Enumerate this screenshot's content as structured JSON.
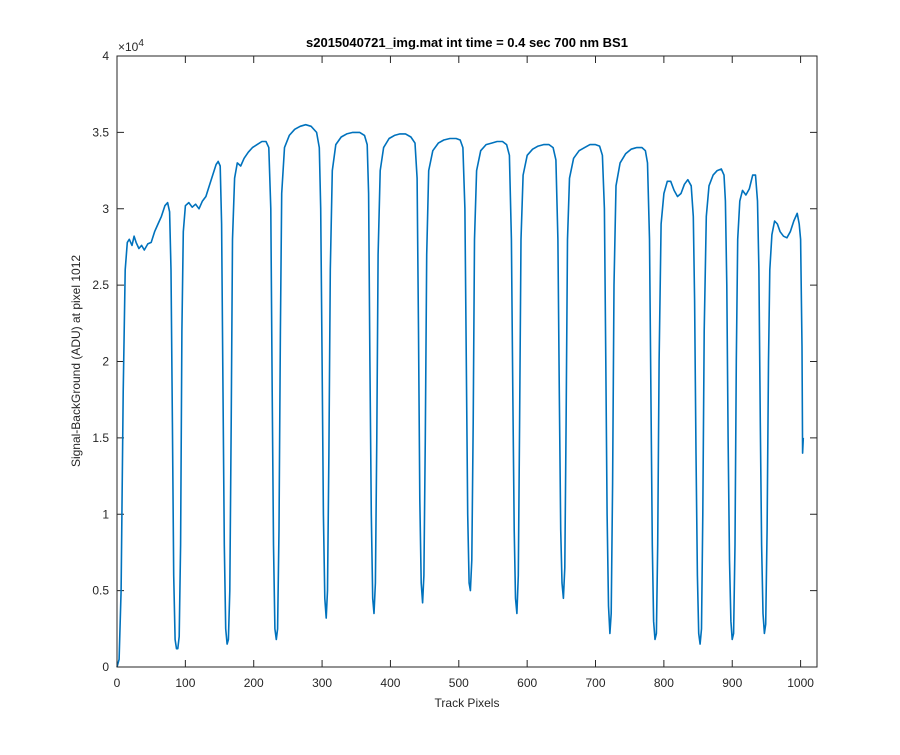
{
  "chart_data": {
    "type": "line",
    "title": "s2015040721_img.mat int time = 0.4 sec  700 nm BS1",
    "xlabel": "Track Pixels",
    "ylabel": "Signal-BackGround (ADU) at pixel 1012",
    "y_exponent_label": "×10",
    "y_exponent_power": "4",
    "y_multiplier": 10000,
    "xlim": [
      0,
      1024
    ],
    "ylim": [
      0,
      4
    ],
    "x_ticks": [
      0,
      100,
      200,
      300,
      400,
      500,
      600,
      700,
      800,
      900,
      1000
    ],
    "y_ticks": [
      0,
      0.5,
      1,
      1.5,
      2,
      2.5,
      3,
      3.5,
      4
    ],
    "x_tick_labels": [
      "0",
      "100",
      "200",
      "300",
      "400",
      "500",
      "600",
      "700",
      "800",
      "900",
      "1000"
    ],
    "y_tick_labels": [
      "0",
      "0.5",
      "1",
      "1.5",
      "2",
      "2.5",
      "3",
      "3.5",
      "4"
    ],
    "grid": false,
    "line_color": "#0072BD",
    "series": [
      {
        "points": [
          [
            0,
            0.0
          ],
          [
            3,
            0.05
          ],
          [
            6,
            0.5
          ],
          [
            9,
            1.8
          ],
          [
            12,
            2.6
          ],
          [
            15,
            2.78
          ],
          [
            18,
            2.8
          ],
          [
            22,
            2.76
          ],
          [
            25,
            2.82
          ],
          [
            28,
            2.78
          ],
          [
            32,
            2.74
          ],
          [
            36,
            2.76
          ],
          [
            40,
            2.73
          ],
          [
            45,
            2.77
          ],
          [
            50,
            2.78
          ],
          [
            55,
            2.85
          ],
          [
            60,
            2.9
          ],
          [
            65,
            2.95
          ],
          [
            70,
            3.02
          ],
          [
            74,
            3.04
          ],
          [
            77,
            2.98
          ],
          [
            79,
            2.6
          ],
          [
            81,
            1.6
          ],
          [
            83,
            0.6
          ],
          [
            85,
            0.18
          ],
          [
            87,
            0.12
          ],
          [
            89,
            0.12
          ],
          [
            91,
            0.2
          ],
          [
            93,
            0.8
          ],
          [
            95,
            2.2
          ],
          [
            97,
            2.85
          ],
          [
            100,
            3.02
          ],
          [
            105,
            3.04
          ],
          [
            110,
            3.01
          ],
          [
            115,
            3.03
          ],
          [
            120,
            3.0
          ],
          [
            125,
            3.05
          ],
          [
            130,
            3.08
          ],
          [
            135,
            3.15
          ],
          [
            140,
            3.22
          ],
          [
            145,
            3.29
          ],
          [
            148,
            3.31
          ],
          [
            151,
            3.28
          ],
          [
            153,
            2.9
          ],
          [
            155,
            1.8
          ],
          [
            157,
            0.8
          ],
          [
            159,
            0.25
          ],
          [
            161,
            0.15
          ],
          [
            163,
            0.18
          ],
          [
            165,
            0.5
          ],
          [
            167,
            1.6
          ],
          [
            169,
            2.8
          ],
          [
            172,
            3.2
          ],
          [
            176,
            3.3
          ],
          [
            181,
            3.28
          ],
          [
            186,
            3.33
          ],
          [
            192,
            3.37
          ],
          [
            198,
            3.4
          ],
          [
            205,
            3.42
          ],
          [
            212,
            3.44
          ],
          [
            218,
            3.44
          ],
          [
            222,
            3.4
          ],
          [
            225,
            3.0
          ],
          [
            227,
            1.8
          ],
          [
            229,
            0.8
          ],
          [
            231,
            0.25
          ],
          [
            233,
            0.18
          ],
          [
            235,
            0.25
          ],
          [
            237,
            0.9
          ],
          [
            239,
            2.2
          ],
          [
            241,
            3.1
          ],
          [
            245,
            3.4
          ],
          [
            252,
            3.48
          ],
          [
            260,
            3.52
          ],
          [
            268,
            3.54
          ],
          [
            276,
            3.55
          ],
          [
            284,
            3.54
          ],
          [
            292,
            3.5
          ],
          [
            296,
            3.4
          ],
          [
            298,
            3.0
          ],
          [
            300,
            2.0
          ],
          [
            302,
            1.0
          ],
          [
            304,
            0.45
          ],
          [
            306,
            0.32
          ],
          [
            308,
            0.5
          ],
          [
            310,
            1.4
          ],
          [
            312,
            2.6
          ],
          [
            315,
            3.25
          ],
          [
            320,
            3.42
          ],
          [
            328,
            3.47
          ],
          [
            336,
            3.49
          ],
          [
            345,
            3.5
          ],
          [
            355,
            3.5
          ],
          [
            362,
            3.48
          ],
          [
            366,
            3.42
          ],
          [
            368,
            3.1
          ],
          [
            370,
            2.0
          ],
          [
            372,
            1.0
          ],
          [
            374,
            0.45
          ],
          [
            376,
            0.35
          ],
          [
            378,
            0.55
          ],
          [
            380,
            1.5
          ],
          [
            382,
            2.7
          ],
          [
            385,
            3.25
          ],
          [
            390,
            3.4
          ],
          [
            398,
            3.46
          ],
          [
            406,
            3.48
          ],
          [
            414,
            3.49
          ],
          [
            422,
            3.49
          ],
          [
            430,
            3.47
          ],
          [
            436,
            3.43
          ],
          [
            439,
            3.2
          ],
          [
            441,
            2.2
          ],
          [
            443,
            1.1
          ],
          [
            445,
            0.55
          ],
          [
            447,
            0.42
          ],
          [
            449,
            0.6
          ],
          [
            451,
            1.5
          ],
          [
            453,
            2.7
          ],
          [
            456,
            3.25
          ],
          [
            462,
            3.38
          ],
          [
            470,
            3.43
          ],
          [
            478,
            3.45
          ],
          [
            487,
            3.46
          ],
          [
            496,
            3.46
          ],
          [
            502,
            3.45
          ],
          [
            506,
            3.4
          ],
          [
            509,
            3.0
          ],
          [
            511,
            2.0
          ],
          [
            513,
            1.0
          ],
          [
            515,
            0.55
          ],
          [
            517,
            0.5
          ],
          [
            519,
            0.7
          ],
          [
            521,
            1.6
          ],
          [
            523,
            2.8
          ],
          [
            526,
            3.25
          ],
          [
            532,
            3.38
          ],
          [
            540,
            3.42
          ],
          [
            548,
            3.43
          ],
          [
            556,
            3.44
          ],
          [
            564,
            3.44
          ],
          [
            570,
            3.42
          ],
          [
            574,
            3.35
          ],
          [
            577,
            2.8
          ],
          [
            579,
            1.8
          ],
          [
            581,
            0.9
          ],
          [
            583,
            0.45
          ],
          [
            585,
            0.35
          ],
          [
            587,
            0.6
          ],
          [
            589,
            1.6
          ],
          [
            591,
            2.8
          ],
          [
            594,
            3.22
          ],
          [
            600,
            3.35
          ],
          [
            608,
            3.39
          ],
          [
            616,
            3.41
          ],
          [
            624,
            3.42
          ],
          [
            632,
            3.42
          ],
          [
            638,
            3.4
          ],
          [
            642,
            3.32
          ],
          [
            645,
            2.8
          ],
          [
            647,
            1.8
          ],
          [
            649,
            0.9
          ],
          [
            651,
            0.55
          ],
          [
            653,
            0.45
          ],
          [
            655,
            0.65
          ],
          [
            657,
            1.6
          ],
          [
            659,
            2.8
          ],
          [
            662,
            3.2
          ],
          [
            668,
            3.33
          ],
          [
            676,
            3.38
          ],
          [
            684,
            3.4
          ],
          [
            692,
            3.42
          ],
          [
            700,
            3.42
          ],
          [
            706,
            3.41
          ],
          [
            710,
            3.35
          ],
          [
            713,
            3.0
          ],
          [
            715,
            2.0
          ],
          [
            717,
            1.0
          ],
          [
            719,
            0.4
          ],
          [
            721,
            0.22
          ],
          [
            723,
            0.35
          ],
          [
            725,
            1.2
          ],
          [
            727,
            2.5
          ],
          [
            730,
            3.15
          ],
          [
            736,
            3.3
          ],
          [
            744,
            3.36
          ],
          [
            752,
            3.39
          ],
          [
            760,
            3.4
          ],
          [
            768,
            3.4
          ],
          [
            773,
            3.38
          ],
          [
            776,
            3.3
          ],
          [
            779,
            2.8
          ],
          [
            781,
            1.8
          ],
          [
            783,
            0.8
          ],
          [
            785,
            0.3
          ],
          [
            787,
            0.18
          ],
          [
            789,
            0.22
          ],
          [
            791,
            0.8
          ],
          [
            793,
            2.0
          ],
          [
            796,
            2.9
          ],
          [
            800,
            3.1
          ],
          [
            805,
            3.18
          ],
          [
            810,
            3.18
          ],
          [
            815,
            3.12
          ],
          [
            820,
            3.08
          ],
          [
            825,
            3.1
          ],
          [
            830,
            3.16
          ],
          [
            835,
            3.19
          ],
          [
            840,
            3.15
          ],
          [
            843,
            2.95
          ],
          [
            845,
            2.4
          ],
          [
            847,
            1.4
          ],
          [
            849,
            0.6
          ],
          [
            851,
            0.22
          ],
          [
            853,
            0.15
          ],
          [
            855,
            0.25
          ],
          [
            857,
            1.0
          ],
          [
            859,
            2.2
          ],
          [
            862,
            2.95
          ],
          [
            866,
            3.15
          ],
          [
            872,
            3.22
          ],
          [
            878,
            3.25
          ],
          [
            884,
            3.26
          ],
          [
            888,
            3.22
          ],
          [
            890,
            3.05
          ],
          [
            892,
            2.5
          ],
          [
            894,
            1.5
          ],
          [
            896,
            0.7
          ],
          [
            898,
            0.3
          ],
          [
            900,
            0.18
          ],
          [
            902,
            0.22
          ],
          [
            904,
            0.8
          ],
          [
            906,
            2.0
          ],
          [
            908,
            2.8
          ],
          [
            911,
            3.05
          ],
          [
            915,
            3.12
          ],
          [
            920,
            3.09
          ],
          [
            925,
            3.13
          ],
          [
            930,
            3.22
          ],
          [
            934,
            3.22
          ],
          [
            937,
            3.05
          ],
          [
            939,
            2.6
          ],
          [
            941,
            1.6
          ],
          [
            943,
            0.8
          ],
          [
            945,
            0.35
          ],
          [
            947,
            0.22
          ],
          [
            949,
            0.28
          ],
          [
            951,
            0.9
          ],
          [
            953,
            2.0
          ],
          [
            955,
            2.6
          ],
          [
            958,
            2.83
          ],
          [
            962,
            2.92
          ],
          [
            966,
            2.9
          ],
          [
            970,
            2.85
          ],
          [
            975,
            2.82
          ],
          [
            980,
            2.81
          ],
          [
            985,
            2.85
          ],
          [
            990,
            2.92
          ],
          [
            995,
            2.97
          ],
          [
            998,
            2.9
          ],
          [
            1000,
            2.8
          ],
          [
            1002,
            2.1
          ],
          [
            1003,
            1.4
          ],
          [
            1004,
            1.5
          ]
        ]
      }
    ]
  }
}
